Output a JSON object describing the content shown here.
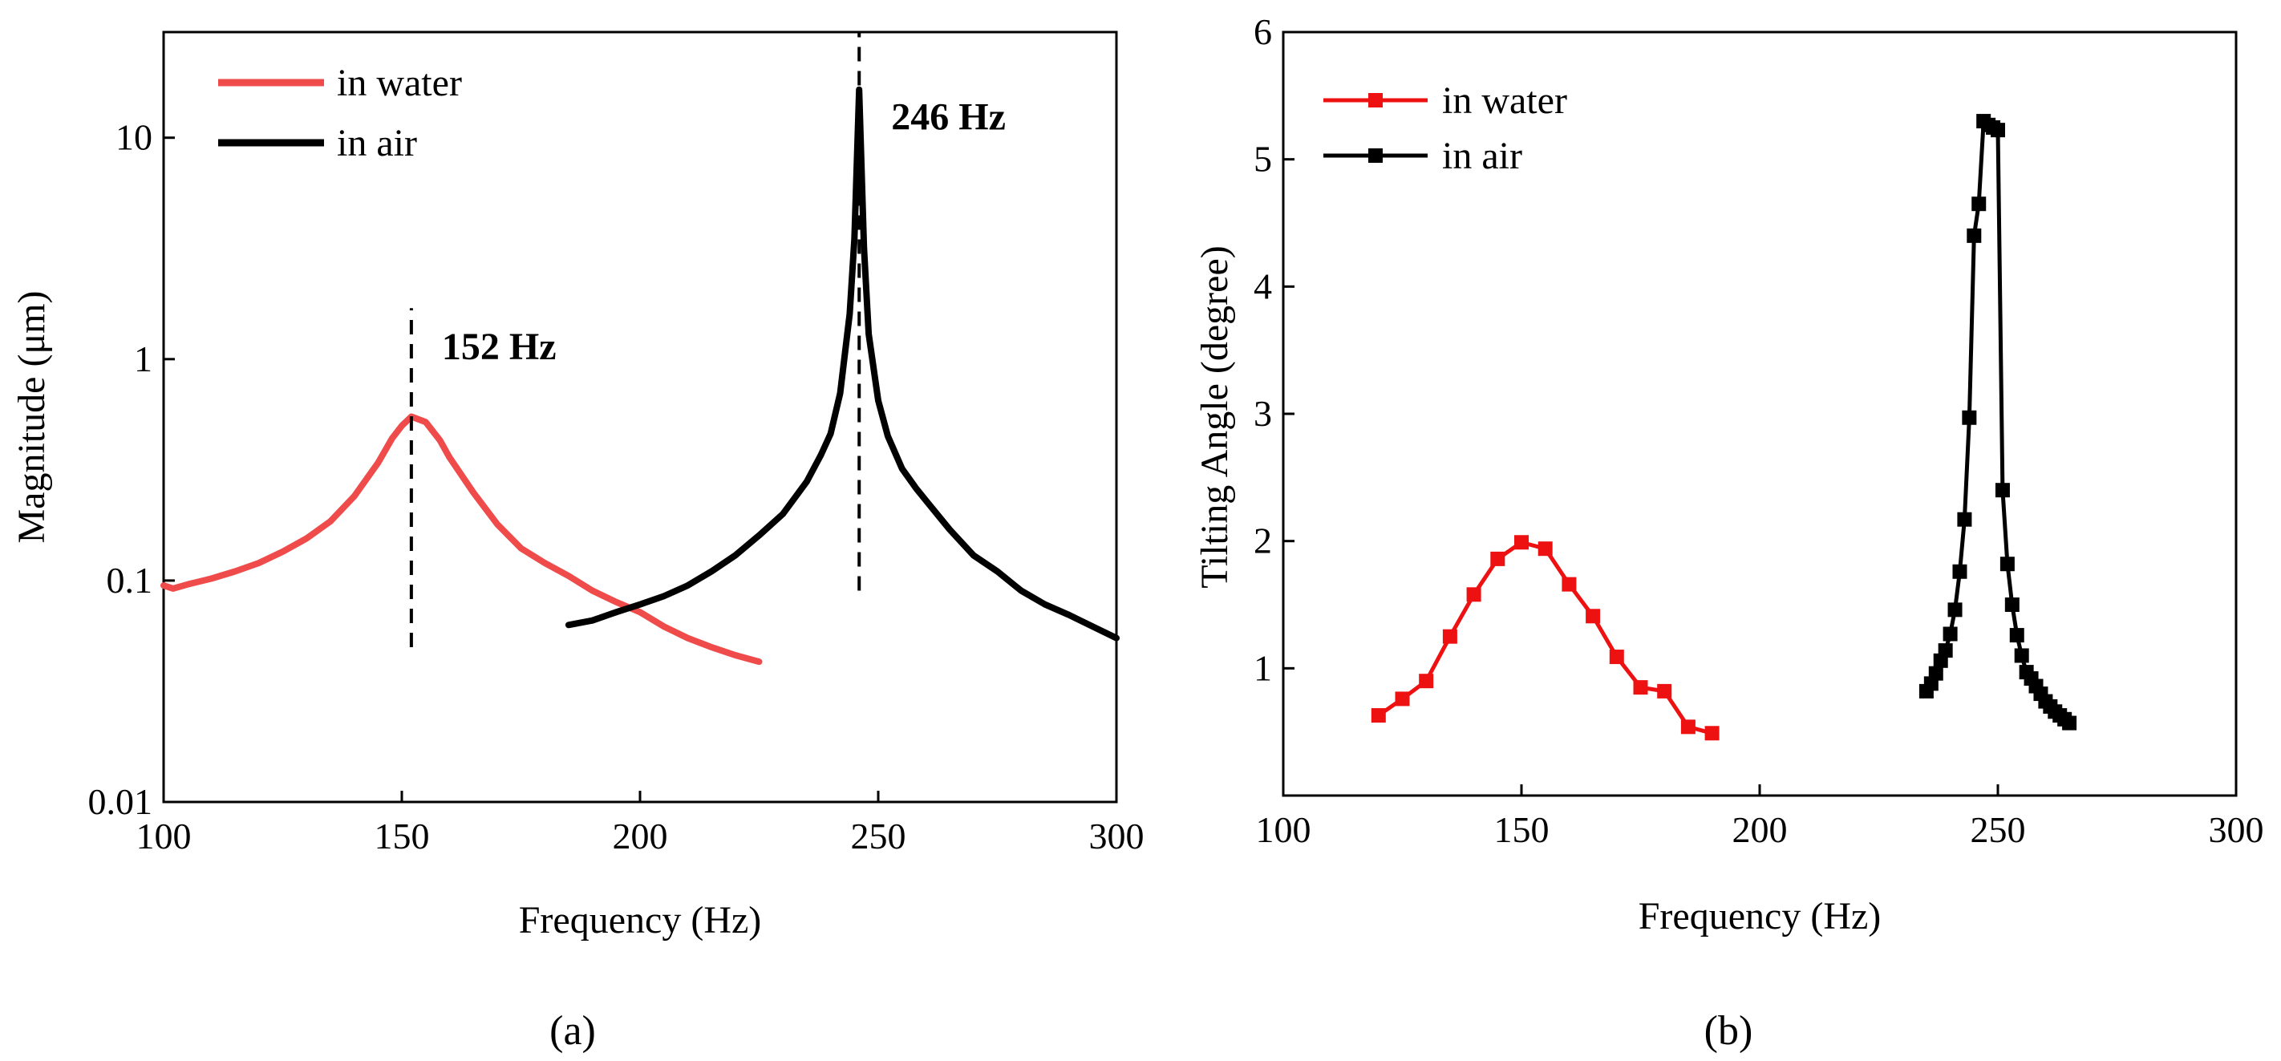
{
  "chart_data": [
    {
      "type": "line",
      "panel_label": "(a)",
      "xlabel": "Frequency (Hz)",
      "ylabel": "Magnitude (μm)",
      "xlim": [
        100,
        300
      ],
      "ylim": [
        0.01,
        30
      ],
      "yscale": "log",
      "xticks": [
        100,
        150,
        200,
        250,
        300
      ],
      "xtick_labels": [
        "100",
        "150",
        "200",
        "250",
        "300"
      ],
      "yticks": [
        0.01,
        0.1,
        1,
        10
      ],
      "ytick_labels": [
        "0.01",
        "0.1",
        "1",
        "10"
      ],
      "legend_position": "top-left",
      "series": [
        {
          "name": "in water",
          "color": "#ef4b4b",
          "x": [
            100,
            102,
            105,
            110,
            115,
            120,
            125,
            130,
            135,
            140,
            145,
            148,
            150,
            152,
            155,
            158,
            160,
            165,
            170,
            175,
            180,
            185,
            190,
            195,
            200,
            205,
            210,
            215,
            220,
            225
          ],
          "y": [
            0.095,
            0.092,
            0.096,
            0.102,
            0.11,
            0.12,
            0.135,
            0.155,
            0.185,
            0.24,
            0.34,
            0.44,
            0.5,
            0.55,
            0.52,
            0.43,
            0.36,
            0.25,
            0.18,
            0.14,
            0.12,
            0.105,
            0.09,
            0.08,
            0.072,
            0.062,
            0.055,
            0.05,
            0.046,
            0.043
          ]
        },
        {
          "name": "in air",
          "color": "#000000",
          "x": [
            185,
            190,
            195,
            200,
            205,
            210,
            215,
            220,
            225,
            230,
            235,
            238,
            240,
            242,
            244,
            245,
            246,
            247,
            248,
            250,
            252,
            255,
            258,
            260,
            265,
            270,
            275,
            280,
            285,
            290,
            295,
            300
          ],
          "y": [
            0.063,
            0.066,
            0.072,
            0.078,
            0.085,
            0.095,
            0.11,
            0.13,
            0.16,
            0.2,
            0.28,
            0.37,
            0.46,
            0.7,
            1.6,
            3.5,
            16.5,
            3.2,
            1.3,
            0.65,
            0.45,
            0.32,
            0.26,
            0.23,
            0.17,
            0.13,
            0.11,
            0.09,
            0.078,
            0.07,
            0.062,
            0.055
          ]
        }
      ],
      "annotations": [
        {
          "text": "152 Hz",
          "x": 152,
          "y_from": 0.05,
          "y_to": 1.7
        },
        {
          "text": "246 Hz",
          "x": 246,
          "y_from": 0.09,
          "y_to": 30
        }
      ]
    },
    {
      "type": "line",
      "panel_label": "(b)",
      "xlabel": "Frequency (Hz)",
      "ylabel": "Tilting Angle (degree)",
      "xlim": [
        100,
        300
      ],
      "ylim": [
        0,
        6
      ],
      "xticks": [
        100,
        150,
        200,
        250,
        300
      ],
      "xtick_labels": [
        "100",
        "150",
        "200",
        "250",
        "300"
      ],
      "yticks": [
        1,
        2,
        3,
        4,
        5,
        6
      ],
      "ytick_labels": [
        "1",
        "2",
        "3",
        "4",
        "5",
        "6"
      ],
      "legend_position": "top-left",
      "series": [
        {
          "name": "in water",
          "color": "#ee1111",
          "marker": "square",
          "x": [
            120,
            125,
            130,
            135,
            140,
            145,
            150,
            155,
            160,
            165,
            170,
            175,
            180,
            185,
            190
          ],
          "y": [
            0.63,
            0.76,
            0.9,
            1.25,
            1.58,
            1.86,
            1.99,
            1.94,
            1.66,
            1.41,
            1.09,
            0.85,
            0.82,
            0.54,
            0.49
          ]
        },
        {
          "name": "in air",
          "color": "#000000",
          "marker": "square",
          "x": [
            235,
            236,
            237,
            238,
            239,
            240,
            241,
            242,
            243,
            244,
            245,
            246,
            247,
            248,
            249,
            250,
            251,
            252,
            253,
            254,
            255,
            256,
            257,
            258,
            259,
            260,
            261,
            262,
            263,
            264,
            265
          ],
          "y": [
            0.82,
            0.88,
            0.96,
            1.06,
            1.14,
            1.27,
            1.46,
            1.76,
            2.17,
            2.97,
            4.4,
            4.65,
            5.3,
            5.27,
            5.25,
            5.23,
            2.4,
            1.82,
            1.5,
            1.26,
            1.1,
            0.97,
            0.92,
            0.86,
            0.8,
            0.74,
            0.7,
            0.66,
            0.63,
            0.6,
            0.57
          ]
        }
      ]
    }
  ]
}
